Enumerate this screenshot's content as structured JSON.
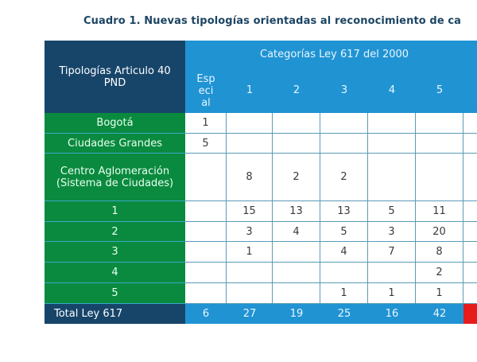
{
  "title": "Cuadro 1. Nuevas tipologías orientadas al reconocimiento de ca",
  "table": {
    "corner_header": "Tipologías Articulo 40 PND",
    "group_header": "Categorías Ley 617 del 2000",
    "columns": [
      "Esp\neci\nal",
      "1",
      "2",
      "3",
      "4",
      "5",
      ""
    ],
    "rows": [
      {
        "label": "Bogotá",
        "values": [
          "1",
          "",
          "",
          "",
          "",
          "",
          ""
        ]
      },
      {
        "label": "Ciudades Grandes",
        "values": [
          "5",
          "",
          "",
          "",
          "",
          "",
          ""
        ]
      },
      {
        "label": "Centro Aglomeración (Sistema de Ciudades)",
        "values": [
          "",
          "8",
          "2",
          "2",
          "",
          "",
          ""
        ]
      },
      {
        "label": "1",
        "values": [
          "",
          "15",
          "13",
          "13",
          "5",
          "11",
          ""
        ]
      },
      {
        "label": "2",
        "values": [
          "",
          "3",
          "4",
          "5",
          "3",
          "20",
          ""
        ]
      },
      {
        "label": "3",
        "values": [
          "",
          "1",
          "",
          "4",
          "7",
          "8",
          ""
        ]
      },
      {
        "label": "4",
        "values": [
          "",
          "",
          "",
          "",
          "",
          "2",
          ""
        ]
      },
      {
        "label": "5",
        "values": [
          "",
          "",
          "",
          "1",
          "1",
          "1",
          ""
        ]
      }
    ],
    "total": {
      "label": "Total Ley 617",
      "values": [
        "6",
        "27",
        "19",
        "25",
        "16",
        "42",
        ""
      ]
    },
    "colors": {
      "header_dark": "#17456a",
      "header_blue": "#2093d3",
      "row_label_green": "#0a8a3f",
      "grid": "#5a9bb5",
      "total_highlight": "#e51c1c"
    }
  }
}
